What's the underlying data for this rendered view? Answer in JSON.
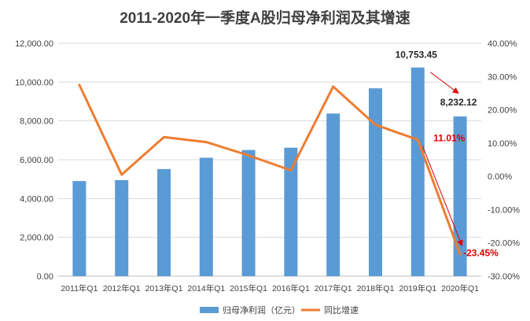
{
  "chart_data": {
    "type": "bar",
    "title": "2011-2020年一季度A股归母净利润及其增速",
    "categories": [
      "2011年Q1",
      "2012年Q1",
      "2013年Q1",
      "2014年Q1",
      "2015年Q1",
      "2016年Q1",
      "2017年Q1",
      "2018年Q1",
      "2019年Q1",
      "2020年Q1"
    ],
    "series": [
      {
        "name": "归母净利润（亿元）",
        "type": "bar",
        "axis": "left",
        "color": "#5B9BD5",
        "values": [
          4900,
          4950,
          5520,
          6100,
          6500,
          6620,
          8380,
          9680,
          10753.45,
          8232.12
        ]
      },
      {
        "name": "同比增速",
        "type": "line",
        "axis": "right",
        "color": "#ED7D31",
        "values": [
          27.5,
          0.5,
          11.8,
          10.3,
          6.3,
          1.8,
          27.0,
          15.5,
          11.01,
          -23.45
        ]
      }
    ],
    "ylim_left": [
      0,
      12000
    ],
    "yticks_left": [
      "0.00",
      "2,000.00",
      "4,000.00",
      "6,000.00",
      "8,000.00",
      "10,000.00",
      "12,000.00"
    ],
    "ylim_right": [
      -30,
      40
    ],
    "yticks_right": [
      "-30.00%",
      "-20.00%",
      "-10.00%",
      "0.00%",
      "10.00%",
      "20.00%",
      "30.00%",
      "40.00%"
    ],
    "grid": true,
    "legend_position": "bottom",
    "annotations": {
      "bar_2019": "10,753.45",
      "bar_2020": "8,232.12",
      "growth_2019": "11.01%",
      "growth_2020": "-23.45%"
    }
  }
}
